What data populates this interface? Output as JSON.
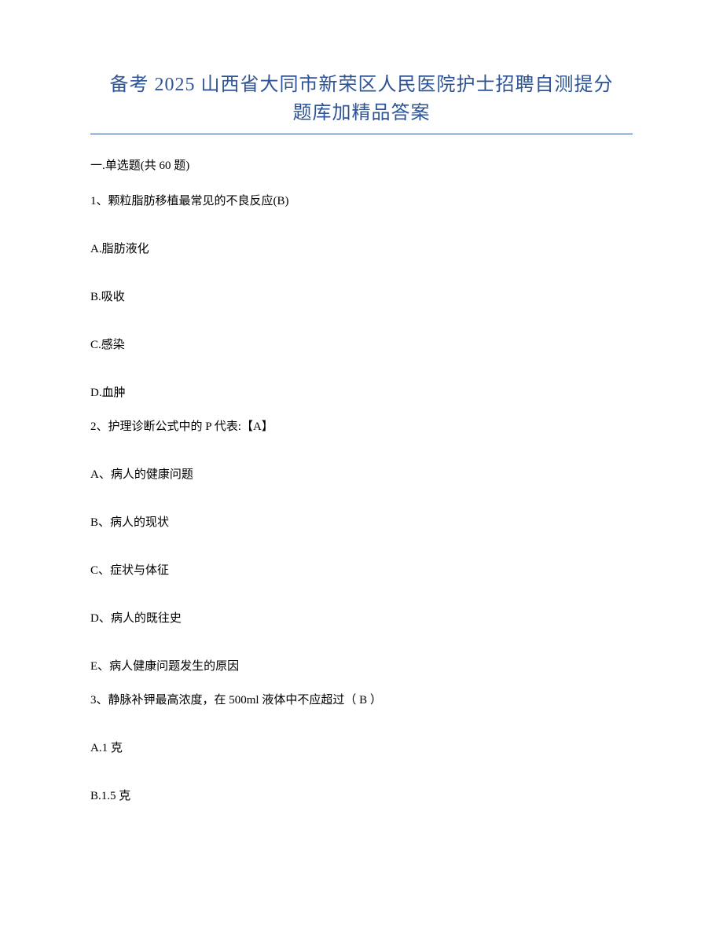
{
  "title": {
    "line1": "备考 2025 山西省大同市新荣区人民医院护士招聘自测提分",
    "line2": "题库加精品答案"
  },
  "section_header": "一.单选题(共 60 题)",
  "questions": [
    {
      "text": "1、颗粒脂肪移植最常见的不良反应(B)",
      "options": [
        "A.脂肪液化",
        "B.吸收",
        "C.感染",
        "D.血肿"
      ]
    },
    {
      "text": "2、护理诊断公式中的 P 代表:【A】",
      "options": [
        "A、病人的健康问题",
        "B、病人的现状",
        "C、症状与体征",
        "D、病人的既往史",
        "E、病人健康问题发生的原因"
      ]
    },
    {
      "text": "3、静脉补钾最高浓度，在 500ml 液体中不应超过（ B ）",
      "options": [
        "A.1 克",
        "B.1.5 克"
      ]
    }
  ],
  "colors": {
    "title_color": "#2e5496",
    "text_color": "#000000",
    "background_color": "#ffffff",
    "underline_color": "#2e5496"
  },
  "typography": {
    "title_fontsize": 24,
    "body_fontsize": 15,
    "font_family": "SimSun"
  }
}
